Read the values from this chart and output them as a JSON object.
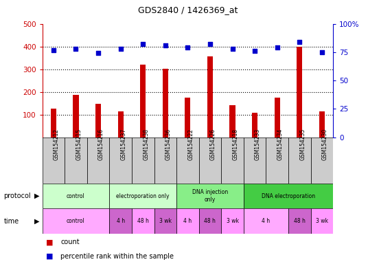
{
  "title": "GDS2840 / 1426369_at",
  "samples": [
    "GSM154212",
    "GSM154215",
    "GSM154216",
    "GSM154237",
    "GSM154238",
    "GSM154236",
    "GSM154222",
    "GSM154226",
    "GSM154218",
    "GSM154233",
    "GSM154234",
    "GSM154235",
    "GSM154230"
  ],
  "counts": [
    125,
    188,
    147,
    115,
    320,
    303,
    176,
    355,
    140,
    107,
    175,
    400,
    115
  ],
  "percentiles": [
    77,
    78,
    74,
    78,
    82,
    81,
    79,
    82,
    78,
    76,
    79,
    84,
    75
  ],
  "ylim_left": [
    0,
    500
  ],
  "ylim_right": [
    0,
    100
  ],
  "yticks_left": [
    100,
    200,
    300,
    400,
    500
  ],
  "yticks_right": [
    0,
    25,
    50,
    75,
    100
  ],
  "grid_lines": [
    100,
    200,
    300,
    400
  ],
  "protocol_groups": [
    {
      "label": "control",
      "start": 0,
      "end": 3,
      "color": "#ccffcc"
    },
    {
      "label": "electroporation only",
      "start": 3,
      "end": 6,
      "color": "#ccffcc"
    },
    {
      "label": "DNA injection\nonly",
      "start": 6,
      "end": 9,
      "color": "#88ee88"
    },
    {
      "label": "DNA electroporation",
      "start": 9,
      "end": 13,
      "color": "#44cc44"
    }
  ],
  "time_groups": [
    {
      "label": "control",
      "start": 0,
      "end": 3,
      "color": "#ffaaff"
    },
    {
      "label": "4 h",
      "start": 3,
      "end": 4,
      "color": "#cc66cc"
    },
    {
      "label": "48 h",
      "start": 4,
      "end": 5,
      "color": "#ff99ff"
    },
    {
      "label": "3 wk",
      "start": 5,
      "end": 6,
      "color": "#cc66cc"
    },
    {
      "label": "4 h",
      "start": 6,
      "end": 7,
      "color": "#ff99ff"
    },
    {
      "label": "48 h",
      "start": 7,
      "end": 8,
      "color": "#cc66cc"
    },
    {
      "label": "3 wk",
      "start": 8,
      "end": 9,
      "color": "#ff99ff"
    },
    {
      "label": "4 h",
      "start": 9,
      "end": 11,
      "color": "#ffaaff"
    },
    {
      "label": "48 h",
      "start": 11,
      "end": 12,
      "color": "#cc66cc"
    },
    {
      "label": "3 wk",
      "start": 12,
      "end": 13,
      "color": "#ff99ff"
    }
  ],
  "bar_color": "#cc0000",
  "dot_color": "#0000cc",
  "background_color": "#ffffff",
  "grid_color": "#000000",
  "tick_color_left": "#cc0000",
  "tick_color_right": "#0000cc",
  "sample_box_color": "#cccccc",
  "figsize": [
    5.36,
    3.84
  ],
  "dpi": 100
}
